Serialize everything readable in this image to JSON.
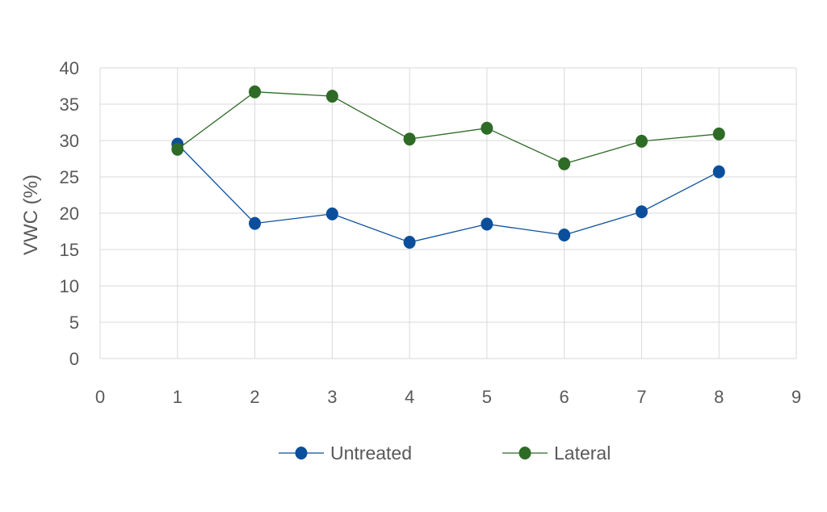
{
  "chart_data": {
    "type": "line",
    "title": "",
    "xlabel": "",
    "ylabel": "VWC (%)",
    "xlim": [
      0,
      9
    ],
    "ylim": [
      0,
      40
    ],
    "x_ticks": [
      "0",
      "1",
      "2",
      "3",
      "4",
      "5",
      "6",
      "7",
      "8",
      "9"
    ],
    "y_ticks": [
      "0",
      "5",
      "10",
      "15",
      "20",
      "25",
      "30",
      "35",
      "40"
    ],
    "grid": true,
    "legend_position": "bottom",
    "series": [
      {
        "name": "Untreated",
        "color": "#0b4f9c",
        "x": [
          1,
          2,
          3,
          4,
          5,
          6,
          7,
          8
        ],
        "y": [
          29.5,
          18.6,
          19.9,
          16.0,
          18.5,
          17.0,
          20.2,
          25.7
        ]
      },
      {
        "name": "Lateral",
        "color": "#2e6b26",
        "x": [
          1,
          2,
          3,
          4,
          5,
          6,
          7,
          8
        ],
        "y": [
          28.8,
          36.7,
          36.1,
          30.2,
          31.7,
          26.8,
          29.9,
          30.9
        ]
      }
    ]
  }
}
